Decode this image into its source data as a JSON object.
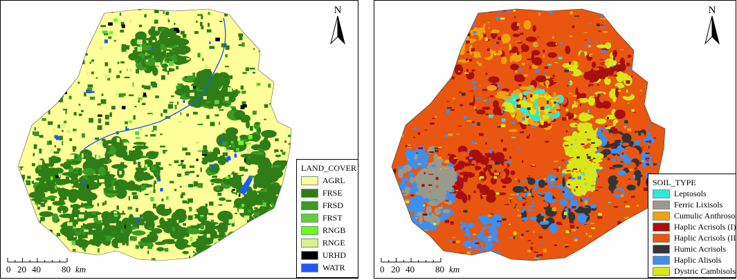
{
  "left_map": {
    "north_label": "N",
    "legend_title": "LAND_COVER",
    "legend": [
      {
        "label": "AGRL",
        "color": "#ffff99"
      },
      {
        "label": "FRSE",
        "color": "#2e7d16"
      },
      {
        "label": "FRSD",
        "color": "#3a9a22"
      },
      {
        "label": "FRST",
        "color": "#5cd13a"
      },
      {
        "label": "RNGB",
        "color": "#66ff1a"
      },
      {
        "label": "RNGE",
        "color": "#d6f28a"
      },
      {
        "label": "URHD",
        "color": "#000000"
      },
      {
        "label": "WATR",
        "color": "#1a5cff"
      }
    ],
    "scale": {
      "ticks": [
        "0",
        "20",
        "40",
        "80"
      ],
      "unit": "km"
    }
  },
  "right_map": {
    "north_label": "N",
    "legend_title": "SOIL_TYPE",
    "legend": [
      {
        "label": "Leptosols",
        "color": "#33e6d9"
      },
      {
        "label": "Ferric Lixisols",
        "color": "#999a8c"
      },
      {
        "label": "Cumulic Anthrosols",
        "color": "#f2a20f"
      },
      {
        "label": "Haplic Acrisols (I)",
        "color": "#a8100f"
      },
      {
        "label": "Haplic Acrisols (II)",
        "color": "#e8560f"
      },
      {
        "label": "Humic Acrisols",
        "color": "#333333"
      },
      {
        "label": "Haplic Alisols",
        "color": "#3d8ff2"
      },
      {
        "label": "Dystric Cambisols",
        "color": "#d9e61a"
      }
    ],
    "scale": {
      "ticks": [
        "0",
        "20",
        "40",
        "80"
      ],
      "unit": "km"
    }
  }
}
